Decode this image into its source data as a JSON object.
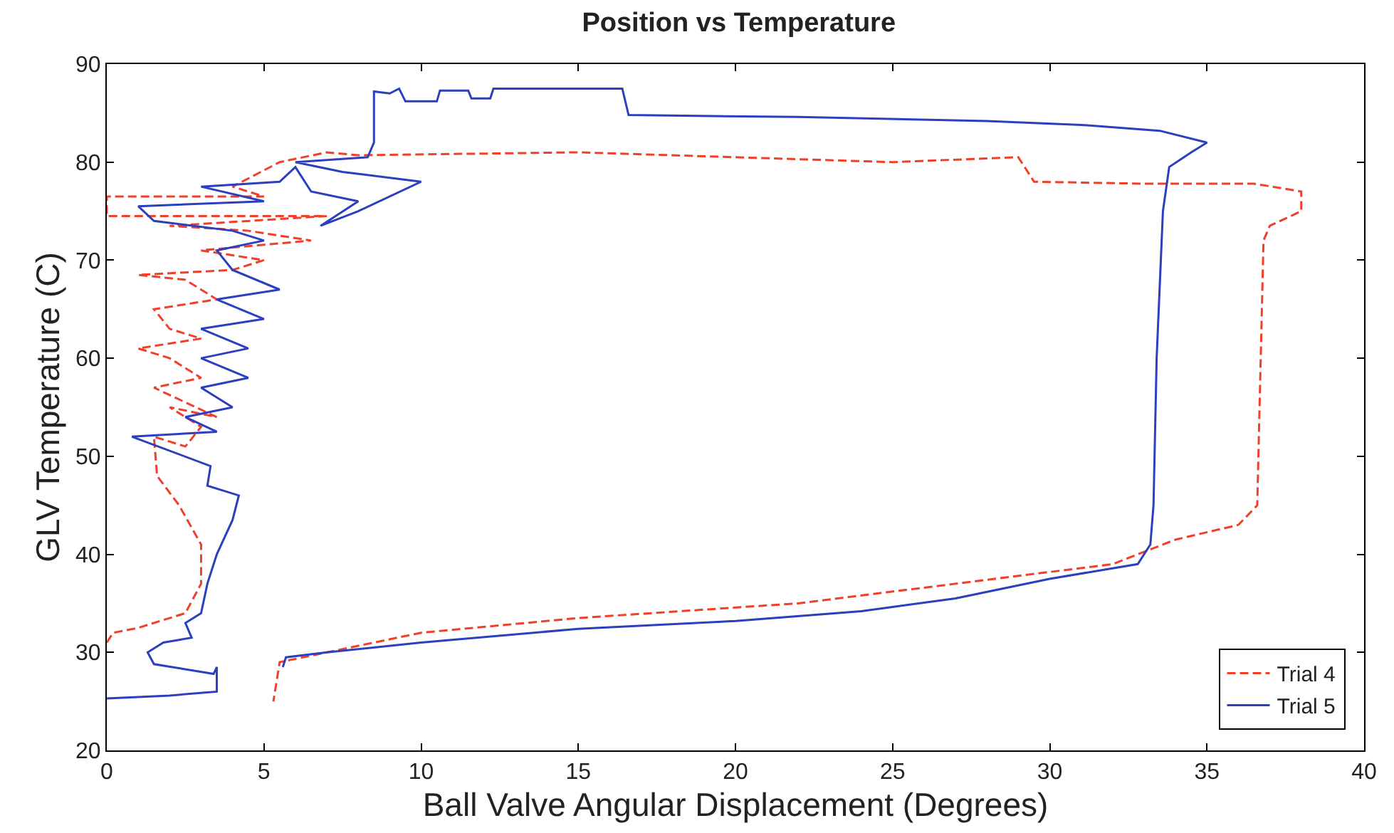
{
  "chart_data": {
    "type": "line",
    "title": "Position vs Temperature",
    "xlabel": "Ball Valve Angular Displacement (Degrees)",
    "ylabel": "GLV Temperature (C)",
    "xlim": [
      0,
      40
    ],
    "xticks": [
      0,
      5,
      10,
      15,
      20,
      25,
      30,
      35,
      40
    ],
    "ylim": [
      20,
      90
    ],
    "yticks": [
      20,
      30,
      40,
      50,
      60,
      70,
      80,
      90
    ],
    "legend": "bottom right",
    "marker": "none",
    "series": [
      {
        "name": "Trial 4",
        "color": "#f0402a",
        "line_style": "dashed",
        "x": [
          0,
          0.2,
          1,
          2.5,
          3,
          3,
          2.3,
          1.6,
          1.5,
          2.5,
          3,
          2,
          3.5,
          1.5,
          3,
          2,
          1,
          3,
          2,
          1.5,
          3.5,
          2.5,
          1,
          4,
          5,
          3,
          6.5,
          4.5,
          2,
          7,
          0,
          0,
          5,
          4,
          5.5,
          7,
          8,
          15,
          20,
          25,
          29,
          29.5,
          33,
          36.5,
          38,
          38,
          37,
          36.8,
          36.6,
          36,
          34,
          32,
          27,
          22,
          15,
          10,
          7,
          5.5,
          5.3
        ],
        "values": [
          31,
          32,
          32.5,
          34,
          37,
          41,
          45,
          48,
          52,
          51,
          53,
          55,
          54,
          57,
          58,
          60,
          61,
          62,
          63,
          65,
          66,
          68,
          68.5,
          69,
          70,
          71,
          72,
          73,
          73.5,
          74.5,
          74.5,
          76.5,
          76.5,
          77.5,
          80,
          81,
          80.7,
          81,
          80.5,
          80,
          80.5,
          78,
          77.8,
          77.8,
          77,
          75,
          73.5,
          72,
          45,
          43,
          41.5,
          39,
          37,
          35,
          33.5,
          32,
          30,
          29,
          25
        ]
      },
      {
        "name": "Trial 5",
        "color": "#2b3fbf",
        "line_style": "solid",
        "x": [
          0,
          2,
          3.5,
          3.5,
          3.4,
          1.5,
          1.3,
          1.8,
          2.7,
          2.5,
          3,
          3.2,
          3.5,
          4,
          4.2,
          3.2,
          3.3,
          0.8,
          3.5,
          2.5,
          4,
          3,
          4.5,
          3,
          4.5,
          3,
          5,
          3.5,
          5.5,
          4,
          3.5,
          5,
          4,
          1.5,
          1,
          5,
          3,
          5.5,
          6,
          6.5,
          8,
          6.8,
          8,
          10,
          7.5,
          6,
          8.3,
          8.5,
          8.5,
          9,
          9.3,
          9.5,
          10.5,
          10.6,
          11.5,
          11.6,
          12.2,
          12.3,
          16.4,
          16.6,
          22,
          28,
          31,
          33.5,
          35,
          34.5,
          33.8,
          33.6,
          33.4,
          33.3,
          33.2,
          32.8,
          30,
          27,
          24,
          20,
          15,
          10,
          7,
          5.7,
          5.6
        ],
        "values": [
          25.3,
          25.6,
          26,
          28.5,
          27.8,
          28.8,
          30,
          31,
          31.5,
          33,
          34,
          37,
          40,
          43.5,
          46,
          47,
          49,
          52,
          52.5,
          54,
          55,
          57,
          58,
          60,
          61,
          63,
          64,
          66,
          67,
          69,
          71,
          72,
          73,
          74,
          75.5,
          76,
          77.5,
          78,
          79.5,
          77,
          76,
          73.5,
          75,
          78,
          79,
          80,
          80.5,
          82,
          87.2,
          87,
          87.5,
          86.2,
          86.2,
          87.3,
          87.3,
          86.5,
          86.5,
          87.5,
          87.5,
          84.8,
          84.6,
          84.2,
          83.8,
          83.2,
          82,
          81,
          79.5,
          75,
          60,
          45,
          41,
          39,
          37.5,
          35.5,
          34.2,
          33.2,
          32.4,
          31,
          30,
          29.5,
          28.5
        ]
      }
    ]
  }
}
